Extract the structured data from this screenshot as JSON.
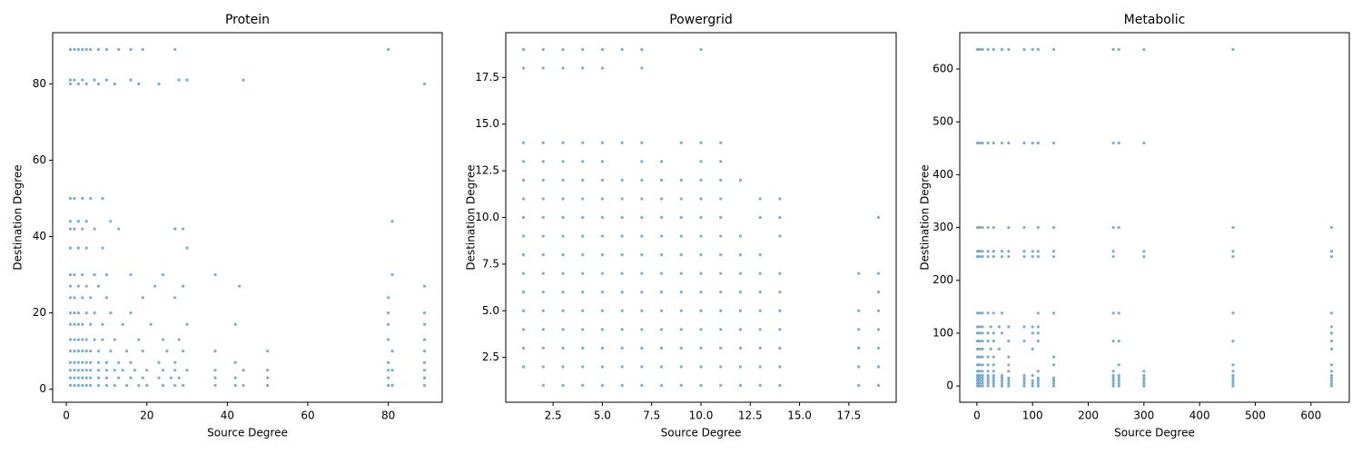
{
  "chart_data": [
    {
      "type": "scatter",
      "title": "Protein",
      "x_label": "Source Degree",
      "y_label": "Destination Degree",
      "color": "#1f77b4",
      "alpha": 0.6,
      "xlim": [
        -3.4,
        93.4
      ],
      "ylim": [
        -3.4,
        93.4
      ],
      "xticks": [
        0,
        20,
        40,
        60,
        80
      ],
      "yticks": [
        0,
        20,
        40,
        60,
        80
      ],
      "x": [
        1,
        2,
        3,
        4,
        5,
        6,
        8,
        10,
        12,
        15,
        18,
        20,
        24,
        27,
        29,
        37,
        42,
        44,
        50,
        80,
        81,
        89,
        1,
        2,
        3,
        4,
        5,
        6,
        8,
        10,
        13,
        16,
        19,
        23,
        26,
        28,
        37,
        42,
        50,
        80,
        89,
        1,
        2,
        3,
        4,
        5,
        6,
        8,
        10,
        12,
        14,
        17,
        20,
        24,
        27,
        30,
        37,
        44,
        50,
        80,
        81,
        89,
        1,
        2,
        3,
        4,
        5,
        6,
        8,
        10,
        13,
        16,
        23,
        27,
        42,
        80,
        89,
        1,
        2,
        3,
        4,
        5,
        6,
        8,
        11,
        15,
        19,
        25,
        29,
        37,
        50,
        81,
        89,
        1,
        2,
        3,
        4,
        5,
        7,
        9,
        12,
        18,
        24,
        28,
        80,
        89,
        1,
        2,
        3,
        4,
        6,
        9,
        14,
        21,
        30,
        42,
        80,
        89,
        1,
        2,
        3,
        5,
        7,
        11,
        16,
        80,
        89,
        1,
        2,
        4,
        6,
        10,
        19,
        27,
        80,
        1,
        3,
        5,
        8,
        22,
        29,
        43,
        89,
        1,
        2,
        4,
        7,
        10,
        16,
        24,
        37,
        81,
        1,
        3,
        5,
        9,
        30,
        1,
        2,
        4,
        7,
        13,
        27,
        29,
        1,
        3,
        5,
        11,
        81,
        1,
        2,
        4,
        6,
        9,
        1,
        3,
        5,
        8,
        12,
        18,
        23,
        89,
        1,
        2,
        4,
        7,
        10,
        16,
        28,
        30,
        44,
        1,
        2,
        3,
        4,
        5,
        6,
        8,
        10,
        13,
        16,
        19,
        27,
        80
      ],
      "values": [
        1,
        1,
        1,
        1,
        1,
        1,
        1,
        1,
        1,
        1,
        1,
        1,
        1,
        1,
        1,
        1,
        1,
        1,
        1,
        1,
        1,
        1,
        3,
        3,
        3,
        3,
        3,
        3,
        3,
        3,
        3,
        3,
        3,
        3,
        3,
        3,
        3,
        3,
        3,
        3,
        3,
        5,
        5,
        5,
        5,
        5,
        5,
        5,
        5,
        5,
        5,
        5,
        5,
        5,
        5,
        5,
        5,
        5,
        5,
        5,
        5,
        5,
        7,
        7,
        7,
        7,
        7,
        7,
        7,
        7,
        7,
        7,
        7,
        7,
        7,
        7,
        7,
        10,
        10,
        10,
        10,
        10,
        10,
        10,
        10,
        10,
        10,
        10,
        10,
        10,
        10,
        10,
        10,
        13,
        13,
        13,
        13,
        13,
        13,
        13,
        13,
        13,
        13,
        13,
        13,
        13,
        17,
        17,
        17,
        17,
        17,
        17,
        17,
        17,
        17,
        17,
        17,
        17,
        20,
        20,
        20,
        20,
        20,
        20,
        20,
        20,
        20,
        24,
        24,
        24,
        24,
        24,
        24,
        24,
        24,
        27,
        27,
        27,
        27,
        27,
        27,
        27,
        27,
        30,
        30,
        30,
        30,
        30,
        30,
        30,
        30,
        30,
        37,
        37,
        37,
        37,
        37,
        42,
        42,
        42,
        42,
        42,
        42,
        42,
        44,
        44,
        44,
        44,
        44,
        50,
        50,
        50,
        50,
        50,
        80,
        80,
        80,
        80,
        80,
        80,
        80,
        80,
        81,
        81,
        81,
        81,
        81,
        81,
        81,
        81,
        81,
        89,
        89,
        89,
        89,
        89,
        89,
        89,
        89,
        89,
        89,
        89,
        89,
        89
      ]
    },
    {
      "type": "scatter",
      "title": "Powergrid",
      "x_label": "Source Degree",
      "y_label": "Destination Degree",
      "color": "#1f77b4",
      "alpha": 0.6,
      "xlim": [
        0.1,
        19.9
      ],
      "ylim": [
        0.1,
        19.9
      ],
      "xticks": [
        2.5,
        {
          "value": 5,
          "label": "5.0"
        },
        7.5,
        {
          "value": 10,
          "label": "10.0"
        },
        12.5,
        {
          "value": 15,
          "label": "15.0"
        },
        17.5
      ],
      "yticks": [
        2.5,
        {
          "value": 5,
          "label": "5.0"
        },
        7.5,
        {
          "value": 10,
          "label": "10.0"
        },
        12.5,
        {
          "value": 15,
          "label": "15.0"
        },
        17.5
      ],
      "x": [
        2,
        3,
        4,
        5,
        6,
        7,
        8,
        9,
        10,
        11,
        12,
        13,
        14,
        18,
        19,
        1,
        2,
        3,
        4,
        5,
        6,
        7,
        8,
        9,
        10,
        11,
        12,
        13,
        14,
        18,
        19,
        1,
        2,
        3,
        4,
        5,
        6,
        7,
        8,
        9,
        10,
        11,
        12,
        13,
        14,
        18,
        19,
        1,
        2,
        3,
        4,
        5,
        6,
        7,
        8,
        9,
        10,
        11,
        12,
        13,
        14,
        18,
        19,
        1,
        2,
        3,
        4,
        5,
        6,
        7,
        8,
        9,
        10,
        11,
        12,
        13,
        14,
        18,
        19,
        1,
        2,
        3,
        4,
        5,
        6,
        7,
        8,
        9,
        10,
        11,
        12,
        13,
        14,
        19,
        1,
        2,
        3,
        4,
        5,
        6,
        7,
        8,
        9,
        10,
        11,
        12,
        13,
        14,
        18,
        19,
        1,
        2,
        3,
        4,
        5,
        6,
        7,
        8,
        9,
        10,
        11,
        12,
        13,
        1,
        2,
        3,
        4,
        5,
        6,
        7,
        8,
        9,
        10,
        11,
        12,
        14,
        1,
        2,
        3,
        4,
        5,
        6,
        7,
        8,
        9,
        10,
        11,
        13,
        14,
        19,
        1,
        2,
        3,
        4,
        5,
        6,
        7,
        8,
        9,
        10,
        11,
        13,
        14,
        1,
        2,
        3,
        4,
        5,
        6,
        7,
        8,
        9,
        10,
        11,
        12,
        1,
        2,
        3,
        4,
        5,
        7,
        8,
        10,
        11,
        1,
        2,
        3,
        4,
        5,
        6,
        7,
        9,
        10,
        11,
        1,
        2,
        3,
        4,
        5,
        7,
        1,
        2,
        3,
        4,
        5,
        6,
        7,
        10
      ],
      "values": [
        1,
        1,
        1,
        1,
        1,
        1,
        1,
        1,
        1,
        1,
        1,
        1,
        1,
        1,
        1,
        2,
        2,
        2,
        2,
        2,
        2,
        2,
        2,
        2,
        2,
        2,
        2,
        2,
        2,
        2,
        2,
        3,
        3,
        3,
        3,
        3,
        3,
        3,
        3,
        3,
        3,
        3,
        3,
        3,
        3,
        3,
        3,
        4,
        4,
        4,
        4,
        4,
        4,
        4,
        4,
        4,
        4,
        4,
        4,
        4,
        4,
        4,
        4,
        5,
        5,
        5,
        5,
        5,
        5,
        5,
        5,
        5,
        5,
        5,
        5,
        5,
        5,
        5,
        5,
        6,
        6,
        6,
        6,
        6,
        6,
        6,
        6,
        6,
        6,
        6,
        6,
        6,
        6,
        6,
        7,
        7,
        7,
        7,
        7,
        7,
        7,
        7,
        7,
        7,
        7,
        7,
        7,
        7,
        7,
        7,
        8,
        8,
        8,
        8,
        8,
        8,
        8,
        8,
        8,
        8,
        8,
        8,
        8,
        9,
        9,
        9,
        9,
        9,
        9,
        9,
        9,
        9,
        9,
        9,
        9,
        9,
        10,
        10,
        10,
        10,
        10,
        10,
        10,
        10,
        10,
        10,
        10,
        10,
        10,
        10,
        11,
        11,
        11,
        11,
        11,
        11,
        11,
        11,
        11,
        11,
        11,
        11,
        11,
        12,
        12,
        12,
        12,
        12,
        12,
        12,
        12,
        12,
        12,
        12,
        12,
        13,
        13,
        13,
        13,
        13,
        13,
        13,
        13,
        13,
        14,
        14,
        14,
        14,
        14,
        14,
        14,
        14,
        14,
        14,
        18,
        18,
        18,
        18,
        18,
        18,
        19,
        19,
        19,
        19,
        19,
        19,
        19,
        19
      ]
    },
    {
      "type": "scatter",
      "title": "Metabolic",
      "x_label": "Source Degree",
      "y_label": "Destination Degree",
      "color": "#1f77b4",
      "alpha": 0.6,
      "xlim": [
        -30.8,
        668.8
      ],
      "ylim": [
        -30.8,
        668.8
      ],
      "xticks": [
        0,
        100,
        200,
        300,
        400,
        500,
        600
      ],
      "yticks": [
        0,
        100,
        200,
        300,
        400,
        500,
        600
      ],
      "x": [
        1,
        5,
        10,
        20,
        30,
        45,
        57,
        85,
        100,
        110,
        138,
        245,
        255,
        300,
        460,
        637,
        1,
        5,
        10,
        20,
        30,
        45,
        57,
        85,
        100,
        110,
        138,
        245,
        255,
        300,
        460,
        637,
        1,
        5,
        10,
        20,
        30,
        45,
        57,
        85,
        100,
        110,
        138,
        245,
        255,
        300,
        460,
        637,
        1,
        5,
        10,
        20,
        30,
        45,
        57,
        85,
        110,
        138,
        245,
        255,
        300,
        460,
        637,
        1,
        5,
        10,
        20,
        30,
        45,
        85,
        100,
        245,
        255,
        300,
        460,
        637,
        1,
        5,
        10,
        20,
        30,
        57,
        110,
        245,
        300,
        460,
        637,
        1,
        5,
        10,
        20,
        30,
        57,
        138,
        255,
        460,
        637,
        1,
        5,
        10,
        20,
        30,
        57,
        138,
        1,
        5,
        10,
        25,
        40,
        100,
        637,
        1,
        5,
        10,
        20,
        30,
        57,
        85,
        110,
        245,
        255,
        460,
        637,
        1,
        5,
        10,
        20,
        30,
        45,
        100,
        110,
        637,
        1,
        5,
        10,
        25,
        40,
        57,
        85,
        100,
        110,
        637,
        1,
        5,
        10,
        20,
        30,
        45,
        110,
        138,
        245,
        255,
        460,
        637,
        1,
        5,
        10,
        20,
        30,
        45,
        57,
        85,
        100,
        110,
        138,
        245,
        300,
        460,
        637,
        1,
        5,
        10,
        20,
        30,
        45,
        57,
        85,
        100,
        110,
        138,
        245,
        300,
        460,
        637,
        1,
        5,
        10,
        20,
        30,
        57,
        85,
        110,
        138,
        245,
        255,
        460,
        637,
        1,
        5,
        10,
        20,
        30,
        45,
        57,
        85,
        100,
        110,
        138,
        245,
        255,
        300,
        1,
        5,
        10,
        20,
        30,
        45,
        57,
        85,
        100,
        110,
        138,
        245,
        255,
        300,
        460
      ],
      "values": [
        0,
        0,
        0,
        0,
        0,
        0,
        0,
        0,
        0,
        0,
        0,
        0,
        0,
        0,
        0,
        0,
        5,
        5,
        5,
        5,
        5,
        5,
        5,
        5,
        5,
        5,
        5,
        5,
        5,
        5,
        5,
        5,
        10,
        10,
        10,
        10,
        10,
        10,
        10,
        10,
        10,
        10,
        10,
        10,
        10,
        10,
        10,
        10,
        15,
        15,
        15,
        15,
        15,
        15,
        15,
        15,
        15,
        15,
        15,
        15,
        15,
        15,
        15,
        20,
        20,
        20,
        20,
        20,
        20,
        20,
        20,
        20,
        20,
        20,
        20,
        20,
        28,
        28,
        28,
        28,
        28,
        28,
        28,
        28,
        28,
        28,
        28,
        40,
        40,
        40,
        40,
        40,
        40,
        40,
        40,
        40,
        40,
        55,
        55,
        55,
        55,
        55,
        55,
        55,
        70,
        70,
        70,
        70,
        70,
        70,
        70,
        85,
        85,
        85,
        85,
        85,
        85,
        85,
        85,
        85,
        85,
        85,
        85,
        100,
        100,
        100,
        100,
        100,
        100,
        100,
        100,
        100,
        112,
        112,
        112,
        112,
        112,
        112,
        112,
        112,
        112,
        112,
        138,
        138,
        138,
        138,
        138,
        138,
        138,
        138,
        138,
        138,
        138,
        138,
        245,
        245,
        245,
        245,
        245,
        245,
        245,
        245,
        245,
        245,
        245,
        245,
        245,
        245,
        245,
        255,
        255,
        255,
        255,
        255,
        255,
        255,
        255,
        255,
        255,
        255,
        255,
        255,
        255,
        255,
        300,
        300,
        300,
        300,
        300,
        300,
        300,
        300,
        300,
        300,
        300,
        300,
        300,
        460,
        460,
        460,
        460,
        460,
        460,
        460,
        460,
        460,
        460,
        460,
        460,
        460,
        460,
        637,
        637,
        637,
        637,
        637,
        637,
        637,
        637,
        637,
        637,
        637,
        637,
        637,
        637,
        637
      ]
    }
  ]
}
